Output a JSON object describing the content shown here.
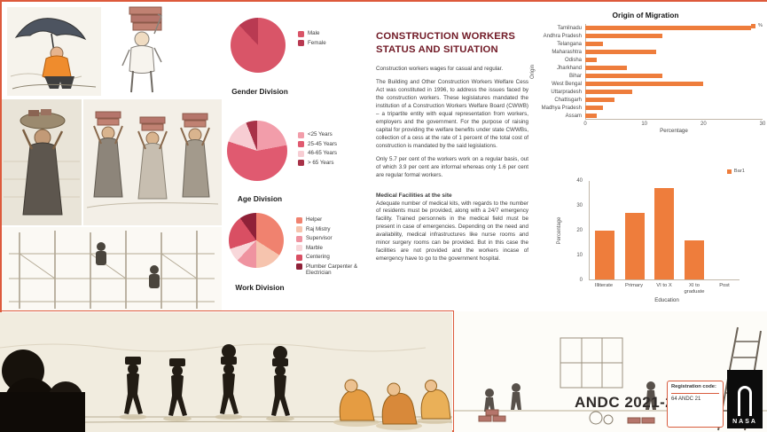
{
  "poster": {
    "title": {
      "line1": "CONSTRUCTION WORKERS",
      "line2": "STATUS AND SITUATION"
    },
    "body": {
      "intro": "Construction workers wages for casual and regular.",
      "para1": "The Building and Other Construction Workers Welfare Cess Act was constituted in 1996, to address the issues faced by the construction workers. These legislatures mandated the institution of a Construction Workers Welfare Board (CWWB) – a tripartite entity with equal representation from workers, employers and the government. For the purpose of raising capital for providing the welfare benefits under state CWWBs, collection of a cess at the rate of 1 percent of the total cost of construction is mandated by the said legislations.",
      "para2": "Only 5.7 per cent of the workers work on a regular basis, out of which 3.9 per cent are informal whereas only 1.6 per cent are regular formal workers."
    },
    "medical": {
      "heading": "Medical Facilities at the site",
      "body": "Adequate number of medical kits, with regards to the number of residents must be provided, along with a 24/7 emergency facility. Trained personnels in the medical field must be present in case of emergencies. Depending on the need and availability, medical infrastructures like nurse rooms and minor surgery rooms can be provided. But in this case the facilities are not provided and the workers incase of emergency have to go to the government hospital."
    },
    "footer": {
      "event": "ANDC 2021-22",
      "registration_label": "Registration code:",
      "registration_value": "64 ANDC 21",
      "logo_text": "NASA"
    }
  },
  "accent": {
    "red_line": "#dd5a3c",
    "bar_orange": "#ee7d3c",
    "title_color": "#711a26"
  },
  "chart_data": [
    {
      "type": "pie",
      "title": "Gender Division",
      "labels": [
        "Male",
        "Female"
      ],
      "values": [
        88,
        12
      ],
      "colors": [
        "#d95568",
        "#b93a52"
      ]
    },
    {
      "type": "pie",
      "title": "Age Division",
      "labels": [
        "<25 Years",
        "25-45 Years",
        "46-65 Years",
        "> 65 Years"
      ],
      "values": [
        22,
        58,
        14,
        6
      ],
      "colors": [
        "#f29daa",
        "#e05a70",
        "#f7cdd3",
        "#a83248"
      ]
    },
    {
      "type": "pie",
      "title": "Work Division",
      "labels": [
        "Helper",
        "Raj Mistry",
        "Supervisor",
        "Marble",
        "Centering",
        "Plumber Carpenter & Electrician"
      ],
      "values": [
        34,
        16,
        12,
        8,
        20,
        10
      ],
      "colors": [
        "#f0826f",
        "#f6c4ae",
        "#ef93a0",
        "#f8d7da",
        "#d94f63",
        "#8f2138"
      ]
    },
    {
      "type": "bar",
      "orientation": "horizontal",
      "title": "Origin of Migration",
      "categories": [
        "Tamilnadu",
        "Andhra Pradesh",
        "Telangana",
        "Maharashtra",
        "Odisha",
        "Jharkhand",
        "Bihar",
        "West Bengal",
        "Uttarpradesh",
        "Chattisgarh",
        "Madhya Pradesh",
        "Assam"
      ],
      "values": [
        28,
        13,
        3,
        12,
        2,
        7,
        13,
        20,
        8,
        5,
        3,
        2
      ],
      "xlabel": "Percentage",
      "ylabel": "Origin",
      "xticks": [
        0,
        10,
        20,
        30
      ],
      "xlim": [
        0,
        30
      ],
      "legend": [
        "%"
      ],
      "bar_color": "#ee7d3c"
    },
    {
      "type": "bar",
      "orientation": "vertical",
      "title": "",
      "categories": [
        "Illiterate",
        "Primary",
        "VI to X",
        "XI to graduate",
        "Post"
      ],
      "values": [
        20,
        27,
        37,
        16,
        0
      ],
      "xlabel": "Education",
      "ylabel": "Percentage",
      "yticks": [
        0,
        10,
        20,
        30,
        40
      ],
      "ylim": [
        0,
        40
      ],
      "legend": [
        "Bar1"
      ],
      "bar_color": "#ee7d3c"
    }
  ]
}
